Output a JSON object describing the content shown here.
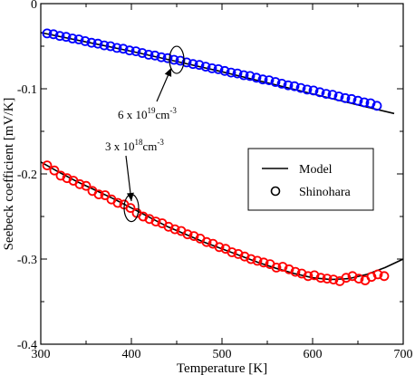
{
  "chart_data": {
    "type": "scatter",
    "title": "",
    "xlabel": "Temperature [K]",
    "ylabel": "Seebeck coefficient [mV/K]",
    "xlim": [
      300,
      700
    ],
    "ylim": [
      -0.4,
      0
    ],
    "xticks": [
      300,
      400,
      500,
      600,
      700
    ],
    "xtick_labels": [
      "300",
      "400",
      "500",
      "600",
      "700"
    ],
    "yticks": [
      0,
      -0.1,
      -0.2,
      -0.3,
      -0.4
    ],
    "ytick_labels": [
      "0",
      "-0.1",
      "-0.2",
      "-0.3",
      "-0.4"
    ],
    "grid": false,
    "legend_position": "center-right",
    "legend": [
      {
        "label": "Model",
        "marker": "line",
        "color": "#000000"
      },
      {
        "label": "Shinohara",
        "marker": "open-circle",
        "color": "#000000"
      }
    ],
    "series": [
      {
        "name": "Model",
        "kind": "line",
        "color": "#000000",
        "curves": [
          {
            "x": [
              300,
              350,
              400,
              450,
              500,
              550,
              600,
              650,
              690
            ],
            "y": [
              -0.034,
              -0.045,
              -0.056,
              -0.068,
              -0.08,
              -0.093,
              -0.106,
              -0.119,
              -0.129
            ]
          },
          {
            "x": [
              300,
              320,
              340,
              360,
              380,
              400,
              420,
              440,
              460,
              480,
              500,
              520,
              540,
              560,
              580,
              600,
              620,
              640,
              660,
              680,
              700
            ],
            "y": [
              -0.186,
              -0.198,
              -0.209,
              -0.219,
              -0.229,
              -0.24,
              -0.251,
              -0.262,
              -0.271,
              -0.28,
              -0.288,
              -0.296,
              -0.304,
              -0.311,
              -0.317,
              -0.322,
              -0.324,
              -0.323,
              -0.318,
              -0.31,
              -0.3
            ]
          }
        ]
      },
      {
        "name": "Shinohara",
        "kind": "scatter",
        "groups": [
          {
            "color": "#0000ff",
            "x": [
              307,
              314,
              321,
              328,
              335,
              342,
              349,
              356,
              363,
              370,
              377,
              384,
              391,
              398,
              405,
              412,
              419,
              426,
              433,
              440,
              447,
              454,
              461,
              468,
              475,
              482,
              489,
              496,
              503,
              510,
              517,
              524,
              531,
              538,
              545,
              552,
              559,
              566,
              573,
              580,
              587,
              594,
              601,
              608,
              615,
              622,
              629,
              636,
              643,
              650,
              657,
              664,
              671
            ],
            "y": [
              -0.035,
              -0.036,
              -0.038,
              -0.039,
              -0.041,
              -0.042,
              -0.044,
              -0.046,
              -0.047,
              -0.049,
              -0.05,
              -0.052,
              -0.053,
              -0.055,
              -0.056,
              -0.058,
              -0.06,
              -0.061,
              -0.063,
              -0.064,
              -0.066,
              -0.067,
              -0.069,
              -0.071,
              -0.072,
              -0.074,
              -0.076,
              -0.077,
              -0.079,
              -0.081,
              -0.082,
              -0.084,
              -0.085,
              -0.087,
              -0.089,
              -0.09,
              -0.092,
              -0.094,
              -0.096,
              -0.097,
              -0.099,
              -0.101,
              -0.102,
              -0.104,
              -0.106,
              -0.107,
              -0.109,
              -0.111,
              -0.112,
              -0.114,
              -0.116,
              -0.117,
              -0.12
            ]
          },
          {
            "color": "#ff0000",
            "x": [
              307,
              315,
              322,
              329,
              336,
              343,
              350,
              357,
              364,
              371,
              378,
              385,
              392,
              399,
              406,
              413,
              420,
              427,
              434,
              441,
              448,
              455,
              462,
              469,
              476,
              483,
              490,
              497,
              504,
              511,
              518,
              525,
              532,
              539,
              546,
              553,
              560,
              567,
              574,
              581,
              588,
              595,
              602,
              609,
              616,
              623,
              630,
              637,
              644,
              651,
              658,
              665,
              672,
              679
            ],
            "y": [
              -0.19,
              -0.196,
              -0.202,
              -0.205,
              -0.208,
              -0.212,
              -0.214,
              -0.22,
              -0.224,
              -0.225,
              -0.23,
              -0.234,
              -0.236,
              -0.24,
              -0.246,
              -0.25,
              -0.253,
              -0.256,
              -0.258,
              -0.262,
              -0.265,
              -0.267,
              -0.271,
              -0.273,
              -0.276,
              -0.28,
              -0.282,
              -0.286,
              -0.288,
              -0.292,
              -0.294,
              -0.297,
              -0.3,
              -0.302,
              -0.304,
              -0.306,
              -0.31,
              -0.309,
              -0.312,
              -0.315,
              -0.317,
              -0.32,
              -0.319,
              -0.322,
              -0.323,
              -0.324,
              -0.326,
              -0.322,
              -0.32,
              -0.323,
              -0.325,
              -0.321,
              -0.318,
              -0.32
            ]
          }
        ]
      }
    ],
    "annotations": [
      {
        "text_base": "6 x 10",
        "exponent": "19",
        "unit": "cm",
        "unit_exp": "-3",
        "circle_at": [
          450,
          -0.066
        ]
      },
      {
        "text_base": "3 x 10",
        "exponent": "18",
        "unit": "cm",
        "unit_exp": "-3",
        "circle_at": [
          400,
          -0.24
        ]
      }
    ]
  }
}
